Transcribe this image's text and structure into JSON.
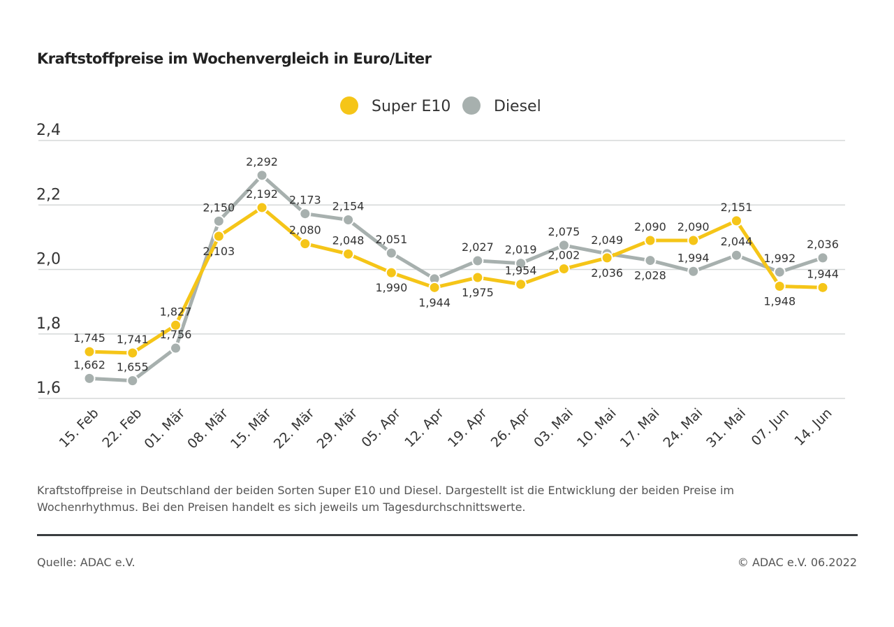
{
  "chart_data": {
    "type": "line",
    "title": "Kraftstoffpreise im Wochenvergleich in Euro/Liter",
    "xlabel": "",
    "ylabel": "",
    "ylim": [
      1.6,
      2.4
    ],
    "yticks": [
      "1,6",
      "1,8",
      "2,0",
      "2,2",
      "2,4"
    ],
    "grid": true,
    "legend_position": "top-center",
    "categories": [
      "15. Feb",
      "22. Feb",
      "01. Mär",
      "08. Mär",
      "15. Mär",
      "22. Mär",
      "29. Mär",
      "05. Apr",
      "12. Apr",
      "19. Apr",
      "26. Apr",
      "03. Mai",
      "10. Mai",
      "17. Mai",
      "24. Mai",
      "31. Mai",
      "07. Jun",
      "14. Jun"
    ],
    "series": [
      {
        "name": "Super E10",
        "color": "#f5c518",
        "values": [
          1.745,
          1.741,
          1.827,
          2.103,
          2.192,
          2.08,
          2.048,
          1.99,
          1.944,
          1.975,
          1.954,
          2.002,
          2.036,
          2.09,
          2.09,
          2.151,
          1.948,
          1.944
        ],
        "labels": [
          "1,745",
          "1,741",
          "1,827",
          "2,103",
          "2,192",
          "2,080",
          "2,048",
          "1,990",
          "1,944",
          "1,975",
          "1,954",
          "2,002",
          "2,036",
          "2,090",
          "2,090",
          "2,151",
          "1,948",
          "1,944"
        ]
      },
      {
        "name": "Diesel",
        "color": "#a7b0ae",
        "values": [
          1.662,
          1.655,
          1.756,
          2.15,
          2.292,
          2.173,
          2.154,
          2.051,
          1.971,
          2.027,
          2.019,
          2.075,
          2.049,
          2.028,
          1.994,
          2.044,
          1.992,
          2.036
        ],
        "labels": [
          "1,662",
          "1,655",
          "1,756",
          "2,150",
          "2,292",
          "2,173",
          "2,154",
          "2,051",
          null,
          "2,027",
          "2,019",
          "2,075",
          "2,049",
          "2,028",
          "1,994",
          "2,044",
          "1,992",
          "2,036"
        ]
      }
    ]
  },
  "description": "Kraftstoffpreise in Deutschland der beiden Sorten Super E10 und Diesel. Dargestellt ist die Entwicklung der beiden Preise im Wochenrhythmus. Bei den Preisen handelt es sich jeweils um Tagesdurchschnittswerte.",
  "source": "Quelle: ADAC e.V.",
  "copyright": "© ADAC e.V. 06.2022"
}
